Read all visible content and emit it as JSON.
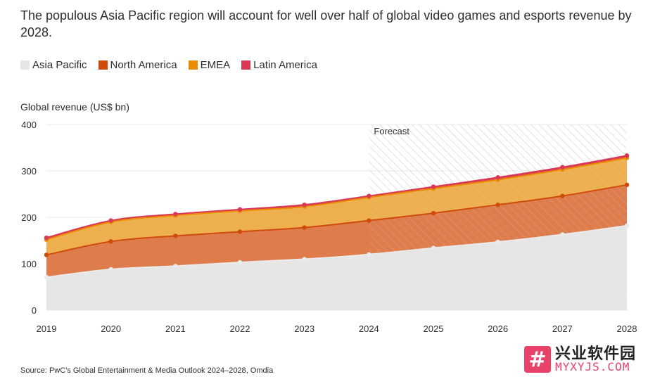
{
  "title": "The populous Asia Pacific region will account for well over half of global video games and esports revenue by 2028.",
  "source": "Source: PwC's Global Entertainment & Media Outlook 2024–2028, Omdia",
  "watermark": {
    "badge": "#",
    "cn": "兴业软件园",
    "en": "MYXYJS.COM"
  },
  "colors": {
    "asia_fill": "#e6e6e6",
    "asia_line": "#ebebeb",
    "na_fill": "#df7c4c",
    "na_line": "#cf4b0c",
    "emea_fill": "#eeaf4f",
    "emea_line": "#eb8c00",
    "latam_fill": "#d93954",
    "latam_line": "#d93954",
    "grid": "#e8e8e8",
    "text": "#2d2d2d"
  },
  "chart_data": {
    "type": "area",
    "stacked": true,
    "values_are_cumulative": true,
    "ylabel": "Global revenue (US$ bn)",
    "ylim": [
      0,
      400
    ],
    "yticks": [
      0,
      100,
      200,
      300,
      400
    ],
    "x": [
      "2019",
      "2020",
      "2021",
      "2022",
      "2023",
      "2024",
      "2025",
      "2026",
      "2027",
      "2028"
    ],
    "forecast_from": "2024",
    "forecast_label": "Forecast",
    "series": [
      {
        "name": "Asia Pacific",
        "key": "asia",
        "values": [
          71,
          88,
          95,
          103,
          110,
          120,
          134,
          147,
          163,
          182
        ]
      },
      {
        "name": "North America",
        "key": "na",
        "values": [
          119,
          148,
          160,
          169,
          178,
          193,
          209,
          227,
          246,
          270
        ]
      },
      {
        "name": "EMEA",
        "key": "emea",
        "values": [
          152,
          190,
          204,
          214,
          223,
          243,
          262,
          281,
          303,
          328
        ]
      },
      {
        "name": "Latin America",
        "key": "latam",
        "values": [
          156,
          193,
          207,
          217,
          227,
          246,
          266,
          286,
          308,
          333
        ]
      }
    ]
  }
}
